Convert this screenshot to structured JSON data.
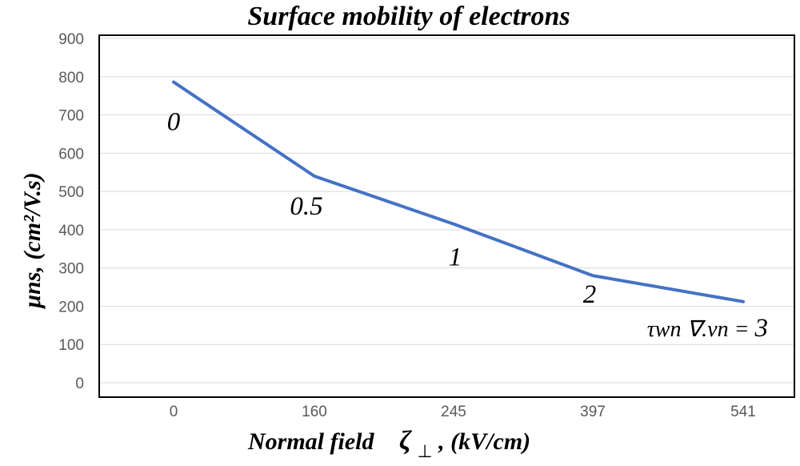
{
  "chart_data": {
    "type": "line",
    "title": "Surface mobility of electrons",
    "xlabel": "Normal field",
    "xlabel_symbol": "ζ",
    "xlabel_subscript": "⊥",
    "xlabel_units": ", (kV/cm)",
    "ylabel": "μns, (cm²/V.s)",
    "categories": [
      "0",
      "160",
      "245",
      "397",
      "541"
    ],
    "y_ticks": [
      "0",
      "100",
      "200",
      "300",
      "400",
      "500",
      "600",
      "700",
      "800",
      "900"
    ],
    "ylim": [
      0,
      900
    ],
    "grid": true,
    "legend": "none",
    "series": [
      {
        "values": [
          786,
          540,
          415,
          280,
          212
        ],
        "color": "#4472c4"
      }
    ],
    "point_labels": [
      "0",
      "0.5",
      "1",
      "2",
      "3"
    ],
    "last_label_prefix": "τwn ∇.vn = "
  }
}
